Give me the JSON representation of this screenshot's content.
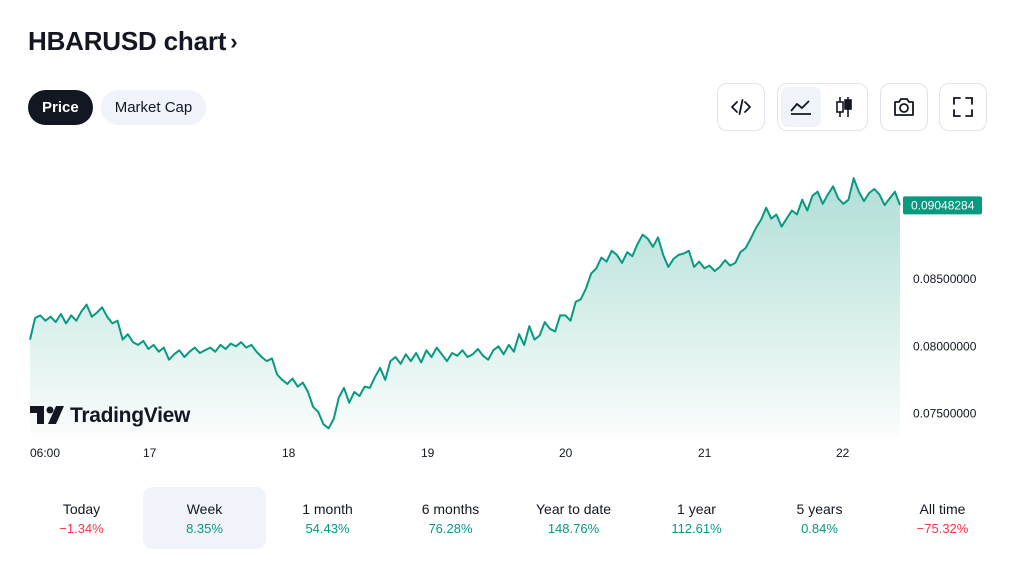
{
  "header": {
    "title": "HBARUSD chart",
    "chevron": "›"
  },
  "tabs": [
    {
      "label": "Price",
      "active": true
    },
    {
      "label": "Market Cap",
      "active": false
    }
  ],
  "toolbar": {
    "icons": [
      "embed-code-icon",
      "line-chart-icon",
      "candlestick-icon",
      "camera-icon",
      "fullscreen-icon"
    ],
    "active_chart_style": "line"
  },
  "watermark": {
    "text": "TradingView"
  },
  "colors": {
    "line": "#089981",
    "up": "#089981",
    "down": "#f23645",
    "price_tag_bg": "#089981"
  },
  "chart_data": {
    "type": "area",
    "series": [
      {
        "values": [
          0.0805,
          0.0821,
          0.0823,
          0.0819,
          0.0822,
          0.0818,
          0.0824,
          0.0817,
          0.0823,
          0.0819,
          0.0826,
          0.0831,
          0.0822,
          0.0825,
          0.0829,
          0.0822,
          0.0817,
          0.0819,
          0.0805,
          0.0809,
          0.0803,
          0.0801,
          0.0804,
          0.0798,
          0.0801,
          0.0796,
          0.0799,
          0.079,
          0.0794,
          0.0797,
          0.0792,
          0.0796,
          0.0799,
          0.0795,
          0.0797,
          0.0799,
          0.0796,
          0.0801,
          0.0798,
          0.0802,
          0.08,
          0.0803,
          0.0799,
          0.0801,
          0.0796,
          0.0792,
          0.0789,
          0.0791,
          0.0779,
          0.0775,
          0.0772,
          0.0776,
          0.077,
          0.0773,
          0.0766,
          0.0755,
          0.0751,
          0.0742,
          0.0739,
          0.0746,
          0.0762,
          0.0769,
          0.0758,
          0.0766,
          0.0763,
          0.077,
          0.0769,
          0.0777,
          0.0784,
          0.0775,
          0.0789,
          0.0792,
          0.0787,
          0.0794,
          0.0789,
          0.0795,
          0.0788,
          0.0797,
          0.0792,
          0.0799,
          0.0794,
          0.0789,
          0.0795,
          0.0793,
          0.0797,
          0.0792,
          0.0794,
          0.0798,
          0.0793,
          0.079,
          0.0797,
          0.08,
          0.0794,
          0.0801,
          0.0796,
          0.0809,
          0.0801,
          0.0815,
          0.0805,
          0.0808,
          0.0818,
          0.0813,
          0.0811,
          0.0823,
          0.0823,
          0.0819,
          0.0833,
          0.0835,
          0.0843,
          0.0854,
          0.0858,
          0.0866,
          0.0863,
          0.0871,
          0.0868,
          0.0862,
          0.087,
          0.0867,
          0.0876,
          0.0883,
          0.088,
          0.0874,
          0.0881,
          0.0868,
          0.0859,
          0.0865,
          0.0868,
          0.0869,
          0.0871,
          0.0859,
          0.0863,
          0.0858,
          0.086,
          0.0856,
          0.0859,
          0.0864,
          0.086,
          0.0862,
          0.087,
          0.0873,
          0.088,
          0.0888,
          0.0894,
          0.0903,
          0.0895,
          0.0898,
          0.0889,
          0.0895,
          0.0901,
          0.0898,
          0.0909,
          0.0901,
          0.0912,
          0.0915,
          0.0906,
          0.0913,
          0.0919,
          0.091,
          0.0906,
          0.0909,
          0.0925,
          0.0915,
          0.0908,
          0.0914,
          0.0917,
          0.0913,
          0.0905,
          0.091,
          0.0915,
          0.0905
        ]
      }
    ],
    "x_ticks": [
      "06:00",
      "17",
      "18",
      "19",
      "20",
      "21",
      "22"
    ],
    "y_ticks": [
      0.075,
      0.08,
      0.085
    ],
    "y_tick_labels": [
      "0.07500000",
      "0.08000000",
      "0.08500000"
    ],
    "last_price": 0.09048284,
    "last_price_label": "0.09048284",
    "ylim": [
      0.0734,
      0.0946
    ],
    "grid": false
  },
  "ranges": [
    {
      "label": "Today",
      "change": "−1.34%",
      "direction": "down",
      "active": false
    },
    {
      "label": "Week",
      "change": "8.35%",
      "direction": "up",
      "active": true
    },
    {
      "label": "1 month",
      "change": "54.43%",
      "direction": "up",
      "active": false
    },
    {
      "label": "6 months",
      "change": "76.28%",
      "direction": "up",
      "active": false
    },
    {
      "label": "Year to date",
      "change": "148.76%",
      "direction": "up",
      "active": false
    },
    {
      "label": "1 year",
      "change": "112.61%",
      "direction": "up",
      "active": false
    },
    {
      "label": "5 years",
      "change": "0.84%",
      "direction": "up",
      "active": false
    },
    {
      "label": "All time",
      "change": "−75.32%",
      "direction": "down",
      "active": false
    }
  ]
}
